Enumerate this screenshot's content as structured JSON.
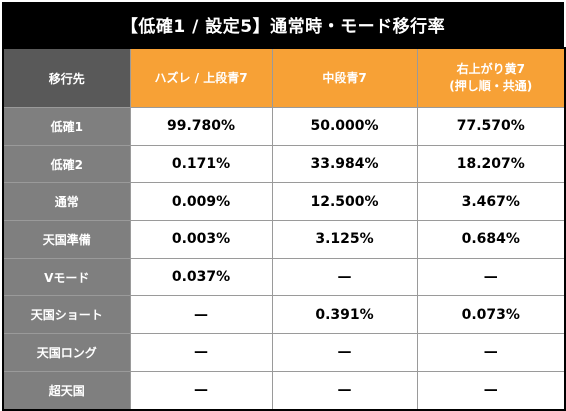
{
  "title": "【低確1 / 設定5】通常時・モード移行率",
  "table": {
    "corner": "移行先",
    "columns": [
      {
        "label": "ハズレ / 上段青7"
      },
      {
        "label": "中段青7"
      },
      {
        "label": "右上がり黄7",
        "sublabel": "(押し順・共通)"
      }
    ],
    "rows": [
      {
        "label": "低確1",
        "values": [
          "99.780%",
          "50.000%",
          "77.570%"
        ]
      },
      {
        "label": "低確2",
        "values": [
          "0.171%",
          "33.984%",
          "18.207%"
        ]
      },
      {
        "label": "通常",
        "values": [
          "0.009%",
          "12.500%",
          "3.467%"
        ]
      },
      {
        "label": "天国準備",
        "values": [
          "0.003%",
          "3.125%",
          "0.684%"
        ]
      },
      {
        "label": "Vモード",
        "values": [
          "0.037%",
          "—",
          "—"
        ]
      },
      {
        "label": "天国ショート",
        "values": [
          "—",
          "0.391%",
          "0.073%"
        ]
      },
      {
        "label": "天国ロング",
        "values": [
          "—",
          "—",
          "—"
        ]
      },
      {
        "label": "超天国",
        "values": [
          "—",
          "—",
          "—"
        ]
      }
    ]
  },
  "colors": {
    "title_bg": "#000000",
    "corner_bg": "#595959",
    "header_bg": "#f7a136",
    "rowhead_bg": "#7f7f7f",
    "cell_bg": "#ffffff"
  }
}
